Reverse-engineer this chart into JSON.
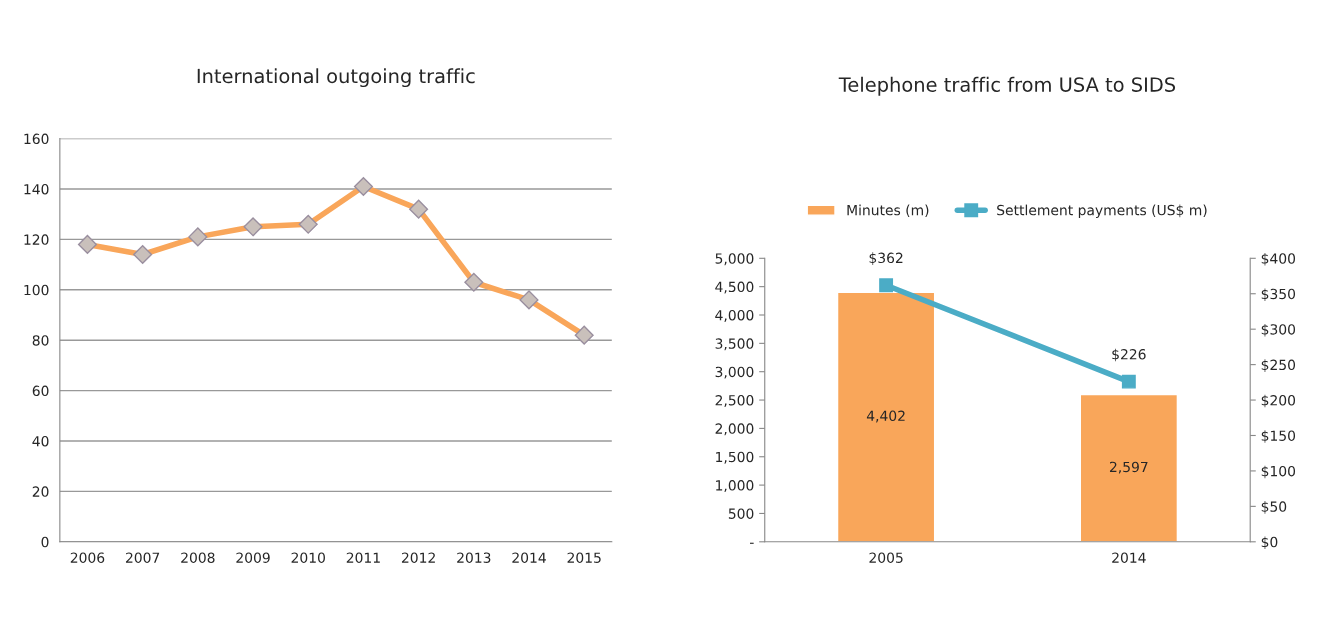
{
  "chart_data": [
    {
      "type": "line",
      "title": "International outgoing traffic",
      "categories": [
        "2006",
        "2007",
        "2008",
        "2009",
        "2010",
        "2011",
        "2012",
        "2013",
        "2014",
        "2015"
      ],
      "series": [
        {
          "color": "#f9a65a",
          "values": [
            118,
            114,
            121,
            125,
            126,
            141,
            132,
            103,
            96,
            82
          ]
        }
      ],
      "ylim": [
        0,
        160
      ],
      "yticks": [
        0,
        20,
        40,
        60,
        80,
        100,
        120,
        140,
        160
      ],
      "grid": "y",
      "marker": "diamond",
      "line_style": "solid"
    },
    {
      "type": "bar",
      "title": "Telephone traffic from USA to SIDS",
      "categories": [
        "2005",
        "2014"
      ],
      "series": [
        {
          "name": "Minutes (m)",
          "type": "bar",
          "color": "#f9a65a",
          "values": [
            4402,
            2597
          ],
          "value_labels": [
            "4,402",
            "2,597"
          ]
        },
        {
          "name": "Settlement payments (US$ m)",
          "type": "line",
          "axis": "y2",
          "color": "#4bacc6",
          "values": [
            362,
            226
          ],
          "value_labels": [
            "$362",
            "$226"
          ],
          "marker": "square"
        }
      ],
      "ylim": [
        0,
        5000
      ],
      "yticks": [
        {
          "value": 0,
          "label": "-"
        },
        {
          "value": 500,
          "label": "500"
        },
        {
          "value": 1000,
          "label": "1,000"
        },
        {
          "value": 1500,
          "label": "1,500"
        },
        {
          "value": 2000,
          "label": "2,000"
        },
        {
          "value": 2500,
          "label": "2,500"
        },
        {
          "value": 3000,
          "label": "3,000"
        },
        {
          "value": 3500,
          "label": "3,500"
        },
        {
          "value": 4000,
          "label": "4,000"
        },
        {
          "value": 4500,
          "label": "4,500"
        },
        {
          "value": 5000,
          "label": "5,000"
        }
      ],
      "y2lim": [
        0,
        400
      ],
      "y2ticks": [
        {
          "value": 0,
          "label": "$0"
        },
        {
          "value": 50,
          "label": "$50"
        },
        {
          "value": 100,
          "label": "$100"
        },
        {
          "value": 150,
          "label": "$150"
        },
        {
          "value": 200,
          "label": "$200"
        },
        {
          "value": 250,
          "label": "$250"
        },
        {
          "value": 300,
          "label": "$300"
        },
        {
          "value": 350,
          "label": "$350"
        },
        {
          "value": 400,
          "label": "$400"
        }
      ],
      "legend": "top",
      "grid": false
    }
  ]
}
